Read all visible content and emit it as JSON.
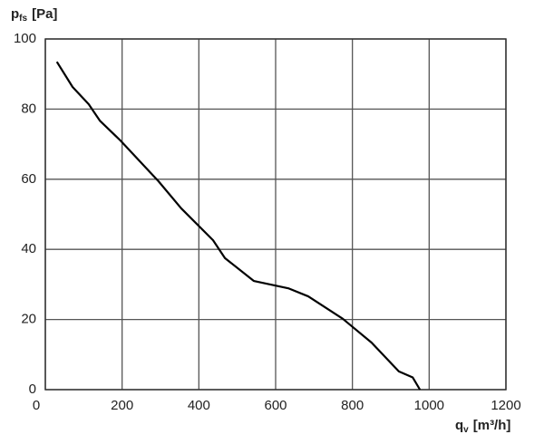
{
  "chart_data": {
    "type": "line",
    "ylabel": [
      "p",
      "fs",
      "[Pa]"
    ],
    "xlabel": [
      "q",
      "v",
      "[m³/h]"
    ],
    "xlim": [
      0,
      1200
    ],
    "xticks": [
      0,
      200,
      400,
      600,
      800,
      1000,
      1200
    ],
    "ylim": [
      0,
      100
    ],
    "yticks": [
      0,
      20,
      40,
      60,
      80,
      100
    ],
    "grid": true,
    "series": [
      {
        "color": "#000000",
        "x": [
          30,
          71,
          113,
          142,
          196,
          295,
          354,
          437,
          468,
          543,
          633,
          685,
          775,
          850,
          921,
          957,
          976
        ],
        "values": [
          93.5,
          86.3,
          81.4,
          76.7,
          71,
          59.4,
          51.7,
          42.6,
          37.5,
          31,
          28.9,
          26.6,
          20.2,
          13.4,
          5.2,
          3.5,
          0
        ]
      }
    ]
  }
}
